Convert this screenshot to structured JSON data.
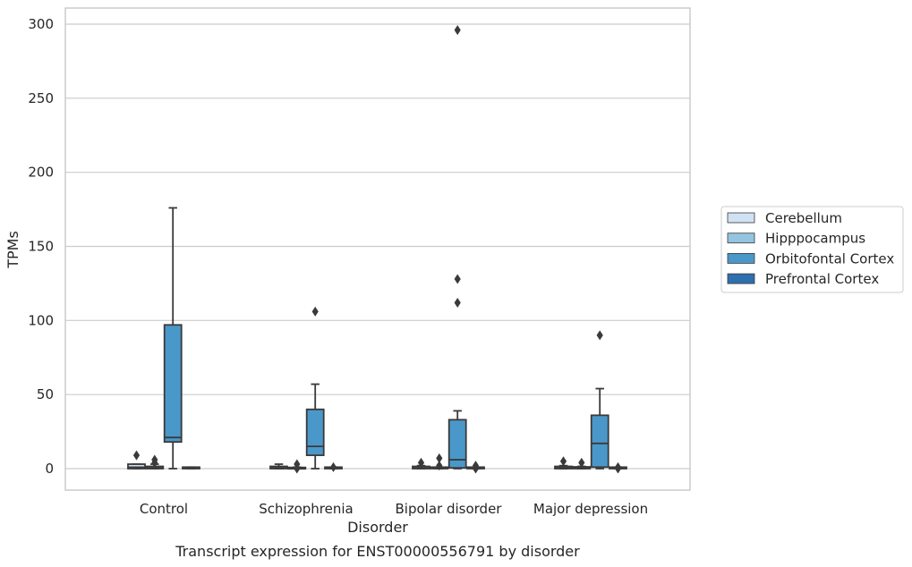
{
  "chart_data": {
    "type": "box",
    "title": "",
    "caption": "Transcript expression for ENST00000556791 by disorder",
    "xlabel": "Disorder",
    "ylabel": "TPMs",
    "ylim": [
      -14,
      311
    ],
    "yticks": [
      0,
      50,
      100,
      150,
      200,
      250,
      300
    ],
    "grid": true,
    "legend_position": "right",
    "categories": [
      "Control",
      "Schizophrenia",
      "Bipolar disorder",
      "Major depression"
    ],
    "series": [
      {
        "name": "Cerebellum",
        "color": "#d0e1f2",
        "boxes": [
          {
            "whisker_low": 0,
            "q1": 0,
            "median": 1,
            "q3": 3,
            "whisker_high": 3,
            "outliers": [
              9
            ]
          },
          {
            "whisker_low": 0,
            "q1": 0,
            "median": 0.5,
            "q3": 1.5,
            "whisker_high": 3,
            "outliers": []
          },
          {
            "whisker_low": 0,
            "q1": 0,
            "median": 0.5,
            "q3": 1.5,
            "whisker_high": 2,
            "outliers": [
              4
            ]
          },
          {
            "whisker_low": 0,
            "q1": 0,
            "median": 0.5,
            "q3": 1.5,
            "whisker_high": 2,
            "outliers": [
              5
            ]
          }
        ]
      },
      {
        "name": "Hipppocampus",
        "color": "#94c4df",
        "boxes": [
          {
            "whisker_low": 0,
            "q1": 0,
            "median": 0.5,
            "q3": 1.5,
            "whisker_high": 3,
            "outliers": [
              4,
              6
            ]
          },
          {
            "whisker_low": 0,
            "q1": 0,
            "median": 0.3,
            "q3": 0.8,
            "whisker_high": 1,
            "outliers": [
              0,
              3
            ]
          },
          {
            "whisker_low": 0,
            "q1": 0,
            "median": 0.3,
            "q3": 1,
            "whisker_high": 1,
            "outliers": [
              2,
              7
            ]
          },
          {
            "whisker_low": 0,
            "q1": 0,
            "median": 0.3,
            "q3": 1.2,
            "whisker_high": 1.5,
            "outliers": [
              4
            ]
          }
        ]
      },
      {
        "name": "Orbitofontal Cortex",
        "color": "#4a98c9",
        "boxes": [
          {
            "whisker_low": 0,
            "q1": 18,
            "median": 21,
            "q3": 97,
            "whisker_high": 176,
            "outliers": []
          },
          {
            "whisker_low": 0,
            "q1": 9,
            "median": 15,
            "q3": 40,
            "whisker_high": 57,
            "outliers": [
              106
            ]
          },
          {
            "whisker_low": 0,
            "q1": 0.5,
            "median": 6,
            "q3": 33,
            "whisker_high": 39,
            "outliers": [
              112,
              128,
              296
            ]
          },
          {
            "whisker_low": 0,
            "q1": 1,
            "median": 17,
            "q3": 36,
            "whisker_high": 54,
            "outliers": [
              90
            ]
          }
        ]
      },
      {
        "name": "Prefrontal Cortex",
        "color": "#2e6fad",
        "boxes": [
          {
            "whisker_low": 0,
            "q1": 0,
            "median": 0.3,
            "q3": 1,
            "whisker_high": 1,
            "outliers": []
          },
          {
            "whisker_low": 0,
            "q1": 0,
            "median": 0.3,
            "q3": 1,
            "whisker_high": 1,
            "outliers": [
              1
            ]
          },
          {
            "whisker_low": 0,
            "q1": 0,
            "median": 0.3,
            "q3": 1,
            "whisker_high": 1,
            "outliers": [
              0,
              2
            ]
          },
          {
            "whisker_low": 0,
            "q1": 0,
            "median": 0.3,
            "q3": 1,
            "whisker_high": 1,
            "outliers": [
              0,
              1
            ]
          }
        ]
      }
    ]
  }
}
